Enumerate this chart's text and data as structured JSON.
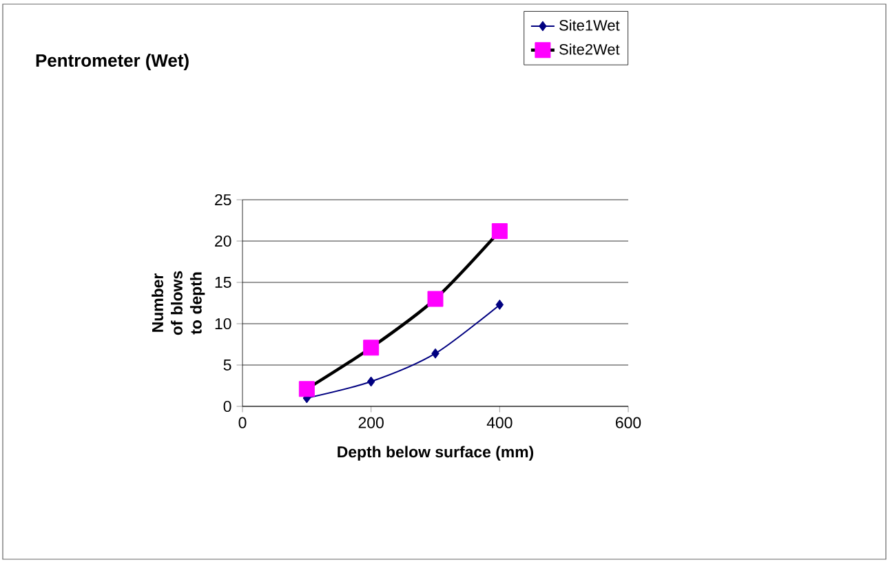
{
  "chart_data": {
    "type": "line",
    "title": "Pentrometer (Wet)",
    "xlabel": "Depth below surface (mm)",
    "ylabel": "Number of blows to depth",
    "x": [
      100,
      200,
      300,
      400
    ],
    "series": [
      {
        "name": "Site1Wet",
        "color": "#000080",
        "marker": "diamond",
        "values": [
          1,
          3,
          6.4,
          12.3
        ]
      },
      {
        "name": "Site2Wet",
        "color": "#000000",
        "colors": [
          "#ff00ff",
          "#ff00ff",
          "#ff00ff",
          "#ff00ff"
        ],
        "marker": "square",
        "values": [
          2.1,
          7.1,
          13,
          21.2
        ]
      }
    ],
    "xlim": [
      0,
      600
    ],
    "xticks": [
      0,
      200,
      400,
      600
    ],
    "ylim": [
      0,
      25
    ],
    "yticks": [
      0,
      5,
      10,
      15,
      20,
      25
    ],
    "grid": "y",
    "legend": "top right"
  }
}
